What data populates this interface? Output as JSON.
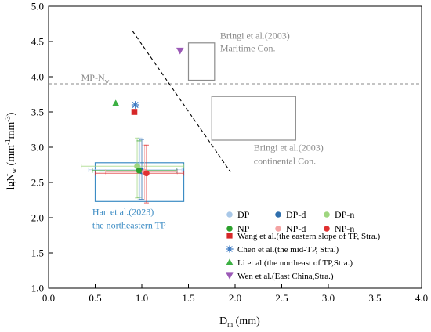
{
  "chart_data": {
    "type": "scatter",
    "xlabel": {
      "main": "D",
      "sub": "m",
      "rest": " (mm)"
    },
    "ylabel": {
      "main": "lgN",
      "sub": "w",
      "rest1": " (mm",
      "sup1": "-1",
      "rest2": "mm",
      "sup2": "-3",
      "rest3": ")"
    },
    "xlim": [
      0.0,
      4.0
    ],
    "ylim": [
      1.0,
      5.0
    ],
    "xticks": [
      "0.0",
      "0.5",
      "1.0",
      "1.5",
      "2.0",
      "2.5",
      "3.0",
      "3.5",
      "4.0"
    ],
    "yticks": [
      "1.0",
      "1.5",
      "2.0",
      "2.5",
      "3.0",
      "3.5",
      "4.0",
      "4.5",
      "5.0"
    ],
    "grid": false,
    "legend_position": "bottom-right",
    "reference_line": {
      "label_main": "MP-N",
      "label_sub": "w",
      "y": 3.9,
      "color": "#888888"
    },
    "dashed_separator": {
      "x": [
        0.9,
        1.95
      ],
      "y": [
        4.65,
        2.65
      ],
      "color": "#000000"
    },
    "regions": [
      {
        "id": "maritime",
        "label_line1": "Bringi et al.(2003)",
        "label_line2": "Maritime Con.",
        "x": [
          1.5,
          1.78
        ],
        "y": [
          3.95,
          4.48
        ],
        "color": "#8c8c8c"
      },
      {
        "id": "continental",
        "label_line1": "Bringi et al.(2003)",
        "label_line2": "continental Con.",
        "x": [
          1.75,
          2.65
        ],
        "y": [
          3.1,
          3.72
        ],
        "color": "#8c8c8c"
      },
      {
        "id": "han",
        "label_line1": "Han et al.(2023)",
        "label_line2": "the northeastern TP",
        "x": [
          0.5,
          1.45
        ],
        "y": [
          2.23,
          2.78
        ],
        "color": "#3c8cc4"
      }
    ],
    "series": [
      {
        "name": "DP",
        "marker": "circle",
        "color": "#a9c8e8",
        "x": 0.98,
        "y": 2.68,
        "xerr": [
          0.55,
          0.45
        ],
        "yerr": [
          0.42,
          0.45
        ]
      },
      {
        "name": "DP-d",
        "marker": "circle",
        "color": "#2f6fad",
        "x": 1.0,
        "y": 2.66,
        "xerr": [
          0.45,
          0.38
        ],
        "yerr": [
          0.4,
          0.45
        ]
      },
      {
        "name": "DP-n",
        "marker": "circle",
        "color": "#9fd67f",
        "x": 0.95,
        "y": 2.73,
        "xerr": [
          0.6,
          0.5
        ],
        "yerr": [
          0.45,
          0.4
        ]
      },
      {
        "name": "NP",
        "marker": "circle",
        "color": "#2ca02c",
        "x": 0.97,
        "y": 2.67,
        "xerr": [
          0.5,
          0.4
        ],
        "yerr": [
          0.38,
          0.42
        ]
      },
      {
        "name": "NP-d",
        "marker": "circle",
        "color": "#f4a3a3",
        "x": 1.03,
        "y": 2.65,
        "xerr": [
          0.42,
          0.35
        ],
        "yerr": [
          0.4,
          0.38
        ]
      },
      {
        "name": "NP-n",
        "marker": "circle",
        "color": "#e03030",
        "x": 1.05,
        "y": 2.63,
        "xerr": [
          0.55,
          0.4
        ],
        "yerr": [
          0.42,
          0.4
        ]
      },
      {
        "name": "Wang et al.(the eastern slope of TP, Stra.)",
        "marker": "square",
        "color": "#d62728",
        "x": 0.92,
        "y": 3.5
      },
      {
        "name": "Chen et al.(the mid-TP, Stra.)",
        "marker": "star",
        "color": "#3a78c2",
        "x": 0.93,
        "y": 3.6
      },
      {
        "name": "Li et al.(the northeast of TP,Stra.)",
        "marker": "triangle-up",
        "color": "#3cb043",
        "x": 0.72,
        "y": 3.62
      },
      {
        "name": "Wen et al.(East China,Stra.)",
        "marker": "triangle-down",
        "color": "#9b59b6",
        "x": 1.41,
        "y": 4.37
      }
    ]
  }
}
